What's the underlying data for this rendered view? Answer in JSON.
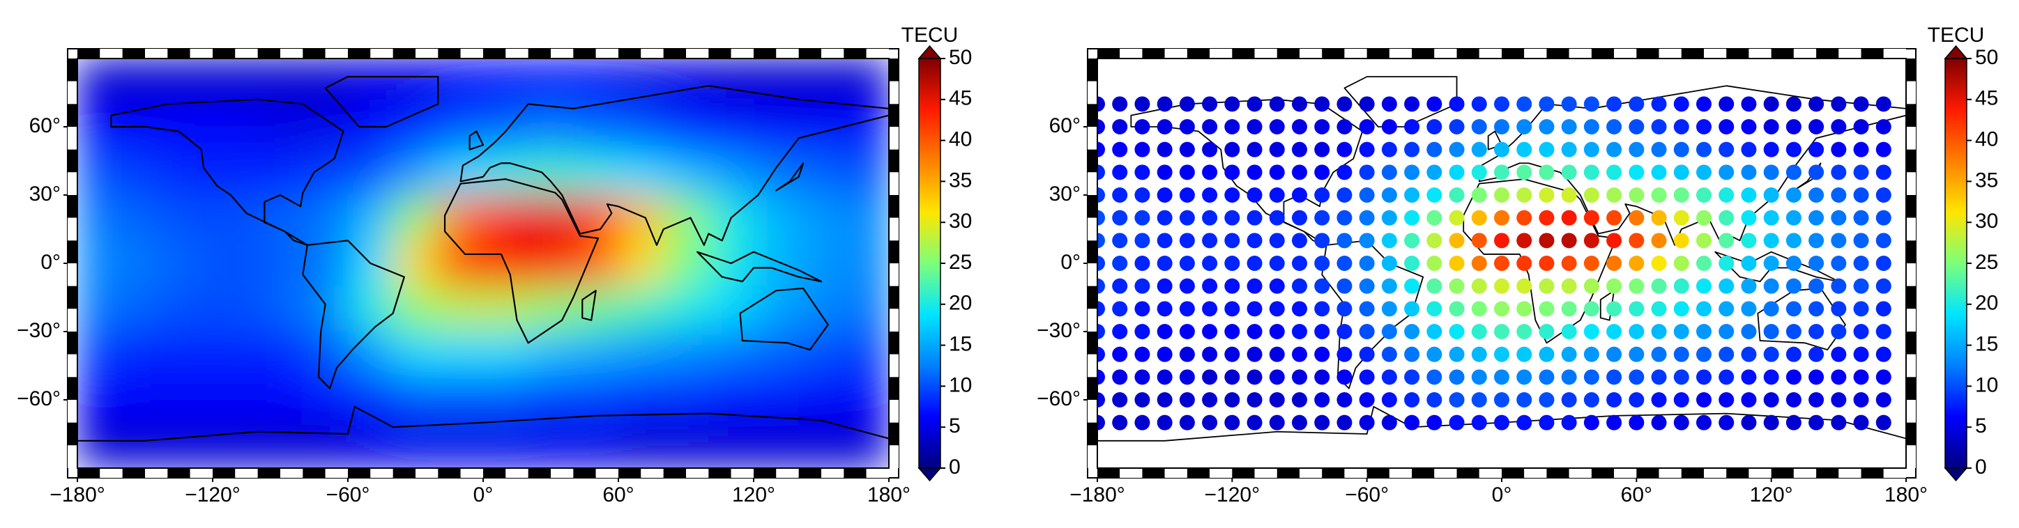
{
  "chart_data": [
    {
      "type": "heatmap",
      "xlim": [
        -180,
        180
      ],
      "ylim": [
        -90,
        90
      ],
      "xticks": [
        {
          "value": -180,
          "label": "−180°"
        },
        {
          "value": -120,
          "label": "−120°"
        },
        {
          "value": -60,
          "label": "−60°"
        },
        {
          "value": 0,
          "label": "0°"
        },
        {
          "value": 60,
          "label": "60°"
        },
        {
          "value": 120,
          "label": "120°"
        },
        {
          "value": 180,
          "label": "180°"
        }
      ],
      "yticks": [
        {
          "value": -60,
          "label": "−60°"
        },
        {
          "value": -30,
          "label": "−30°"
        },
        {
          "value": 0,
          "label": "0°"
        },
        {
          "value": 30,
          "label": "30°"
        },
        {
          "value": 60,
          "label": "60°"
        }
      ],
      "colorbar": {
        "label": "TECU",
        "lim": [
          0,
          50
        ],
        "ticks": [
          0,
          5,
          10,
          15,
          20,
          25,
          30,
          35,
          40,
          45,
          50
        ],
        "extend": "both"
      },
      "colormap": [
        "#00007f",
        "#0000ff",
        "#0080ff",
        "#00e5ff",
        "#7dff7a",
        "#ffe600",
        "#ff8000",
        "#ff1a00",
        "#7f0000"
      ],
      "lons": [
        -170,
        -150,
        -130,
        -110,
        -90,
        -70,
        -50,
        -30,
        -10,
        10,
        30,
        50,
        70,
        90,
        110,
        130,
        150,
        170
      ],
      "lats": [
        80,
        60,
        40,
        20,
        0,
        -20,
        -40,
        -60,
        -80
      ],
      "z": [
        [
          4,
          4,
          4,
          4,
          4,
          4,
          5,
          5,
          6,
          6,
          6,
          6,
          5,
          5,
          4,
          4,
          4,
          4
        ],
        [
          6,
          6,
          6,
          6,
          5,
          5,
          6,
          8,
          10,
          11,
          12,
          11,
          10,
          8,
          7,
          6,
          6,
          6
        ],
        [
          10,
          9,
          8,
          8,
          8,
          9,
          10,
          14,
          18,
          20,
          21,
          20,
          18,
          16,
          14,
          12,
          11,
          10
        ],
        [
          12,
          11,
          10,
          10,
          11,
          12,
          16,
          26,
          38,
          44,
          45,
          42,
          34,
          26,
          20,
          16,
          14,
          13
        ],
        [
          13,
          12,
          11,
          10,
          11,
          12,
          18,
          32,
          42,
          44,
          44,
          40,
          32,
          25,
          20,
          16,
          14,
          13
        ],
        [
          12,
          11,
          10,
          10,
          11,
          13,
          20,
          26,
          28,
          28,
          26,
          24,
          22,
          20,
          18,
          15,
          13,
          12
        ],
        [
          9,
          8,
          8,
          8,
          8,
          10,
          14,
          18,
          18,
          18,
          16,
          15,
          14,
          13,
          12,
          11,
          10,
          9
        ],
        [
          6,
          6,
          6,
          6,
          6,
          7,
          8,
          10,
          10,
          10,
          9,
          9,
          8,
          8,
          7,
          7,
          6,
          6
        ],
        [
          4,
          4,
          4,
          4,
          4,
          4,
          5,
          5,
          5,
          5,
          5,
          5,
          4,
          4,
          4,
          4,
          4,
          4
        ]
      ]
    },
    {
      "type": "dots",
      "xlim": [
        -180,
        180
      ],
      "ylim": [
        -90,
        90
      ],
      "xticks": [
        {
          "value": -180,
          "label": "−180°"
        },
        {
          "value": -120,
          "label": "−120°"
        },
        {
          "value": -60,
          "label": "−60°"
        },
        {
          "value": 0,
          "label": "0°"
        },
        {
          "value": 60,
          "label": "60°"
        },
        {
          "value": 120,
          "label": "120°"
        },
        {
          "value": 180,
          "label": "180°"
        }
      ],
      "yticks": [
        {
          "value": -60,
          "label": "−60°"
        },
        {
          "value": -30,
          "label": "−30°"
        },
        {
          "value": 0,
          "label": "0°"
        },
        {
          "value": 30,
          "label": "30°"
        },
        {
          "value": 60,
          "label": "60°"
        }
      ],
      "colorbar": {
        "label": "TECU",
        "lim": [
          0,
          50
        ],
        "ticks": [
          0,
          5,
          10,
          15,
          20,
          25,
          30,
          35,
          40,
          45,
          50
        ],
        "extend": "both"
      },
      "colormap": [
        "#00007f",
        "#0000ff",
        "#0080ff",
        "#00e5ff",
        "#7dff7a",
        "#ffe600",
        "#ff8000",
        "#ff1a00",
        "#7f0000"
      ],
      "lons": [
        -180,
        -170,
        -160,
        -150,
        -140,
        -130,
        -120,
        -110,
        -100,
        -90,
        -80,
        -70,
        -60,
        -50,
        -40,
        -30,
        -20,
        -10,
        0,
        10,
        20,
        30,
        40,
        50,
        60,
        70,
        80,
        90,
        100,
        110,
        120,
        130,
        140,
        150,
        160,
        170
      ],
      "lats": [
        70,
        60,
        50,
        40,
        30,
        20,
        10,
        0,
        -10,
        -20,
        -30,
        -40,
        -50,
        -60,
        -70
      ],
      "z": [
        [
          4,
          4,
          4,
          4,
          4,
          4,
          4,
          4,
          4,
          4,
          4,
          4,
          4,
          5,
          5,
          6,
          7,
          8,
          9,
          10,
          10,
          10,
          10,
          9,
          9,
          8,
          7,
          6,
          5,
          5,
          4,
          4,
          4,
          4,
          4,
          4
        ],
        [
          5,
          5,
          5,
          5,
          5,
          5,
          5,
          5,
          5,
          5,
          5,
          5,
          6,
          6,
          7,
          8,
          9,
          11,
          12,
          13,
          13,
          13,
          12,
          11,
          10,
          9,
          8,
          7,
          6,
          6,
          5,
          5,
          5,
          5,
          5,
          5
        ],
        [
          6,
          6,
          6,
          5,
          5,
          5,
          5,
          5,
          5,
          5,
          5,
          6,
          7,
          8,
          9,
          11,
          13,
          15,
          16,
          17,
          17,
          16,
          15,
          14,
          13,
          12,
          11,
          10,
          9,
          8,
          7,
          7,
          7,
          6,
          6,
          6
        ],
        [
          8,
          7,
          7,
          6,
          6,
          6,
          6,
          6,
          6,
          6,
          6,
          7,
          9,
          11,
          13,
          15,
          18,
          20,
          22,
          23,
          23,
          22,
          21,
          20,
          19,
          18,
          17,
          16,
          14,
          13,
          12,
          11,
          10,
          9,
          9,
          8
        ],
        [
          9,
          8,
          8,
          7,
          7,
          7,
          7,
          7,
          7,
          7,
          8,
          9,
          11,
          13,
          16,
          19,
          22,
          25,
          27,
          28,
          29,
          29,
          28,
          27,
          26,
          25,
          24,
          22,
          20,
          18,
          16,
          14,
          12,
          11,
          10,
          9
        ],
        [
          10,
          9,
          9,
          8,
          8,
          8,
          8,
          8,
          8,
          8,
          9,
          10,
          12,
          15,
          19,
          24,
          29,
          34,
          38,
          41,
          43,
          44,
          43,
          41,
          38,
          34,
          30,
          26,
          22,
          19,
          17,
          15,
          13,
          12,
          11,
          10
        ],
        [
          10,
          9,
          9,
          8,
          8,
          8,
          8,
          8,
          8,
          8,
          9,
          11,
          13,
          17,
          22,
          28,
          34,
          40,
          44,
          46,
          47,
          47,
          46,
          44,
          41,
          37,
          32,
          27,
          23,
          20,
          17,
          15,
          13,
          12,
          11,
          10
        ],
        [
          9,
          9,
          8,
          8,
          8,
          8,
          8,
          8,
          8,
          8,
          9,
          10,
          12,
          16,
          21,
          27,
          33,
          38,
          41,
          42,
          42,
          41,
          40,
          38,
          35,
          31,
          27,
          23,
          20,
          17,
          15,
          13,
          12,
          11,
          10,
          9
        ],
        [
          9,
          8,
          8,
          7,
          7,
          7,
          7,
          7,
          7,
          8,
          9,
          10,
          12,
          15,
          19,
          23,
          26,
          28,
          29,
          29,
          28,
          28,
          27,
          26,
          25,
          23,
          21,
          19,
          17,
          15,
          13,
          12,
          11,
          10,
          10,
          9
        ],
        [
          8,
          8,
          7,
          7,
          7,
          7,
          7,
          7,
          7,
          7,
          8,
          9,
          11,
          14,
          17,
          20,
          23,
          25,
          26,
          26,
          25,
          24,
          23,
          22,
          21,
          20,
          19,
          17,
          15,
          14,
          12,
          11,
          10,
          9,
          9,
          8
        ],
        [
          8,
          7,
          7,
          6,
          6,
          6,
          6,
          6,
          6,
          7,
          7,
          8,
          10,
          12,
          14,
          17,
          19,
          21,
          22,
          22,
          21,
          20,
          19,
          18,
          17,
          16,
          15,
          14,
          13,
          12,
          11,
          10,
          9,
          9,
          8,
          8
        ],
        [
          7,
          6,
          6,
          6,
          5,
          5,
          5,
          5,
          5,
          6,
          6,
          7,
          8,
          10,
          12,
          14,
          15,
          16,
          17,
          17,
          16,
          15,
          14,
          13,
          13,
          12,
          11,
          11,
          10,
          9,
          9,
          8,
          8,
          7,
          7,
          7
        ],
        [
          6,
          5,
          5,
          5,
          5,
          4,
          4,
          4,
          5,
          5,
          5,
          6,
          7,
          8,
          9,
          11,
          12,
          13,
          13,
          13,
          12,
          12,
          11,
          10,
          10,
          9,
          9,
          8,
          8,
          7,
          7,
          6,
          6,
          6,
          6,
          6
        ],
        [
          5,
          4,
          4,
          4,
          4,
          4,
          4,
          4,
          4,
          4,
          5,
          5,
          6,
          7,
          8,
          9,
          10,
          10,
          10,
          10,
          10,
          9,
          9,
          8,
          8,
          7,
          7,
          6,
          6,
          6,
          5,
          5,
          5,
          5,
          5,
          5
        ],
        [
          4,
          4,
          4,
          4,
          4,
          4,
          4,
          4,
          4,
          4,
          4,
          4,
          5,
          5,
          6,
          6,
          7,
          7,
          7,
          7,
          7,
          7,
          6,
          6,
          6,
          5,
          5,
          5,
          5,
          4,
          4,
          4,
          4,
          4,
          4,
          4
        ]
      ]
    }
  ]
}
